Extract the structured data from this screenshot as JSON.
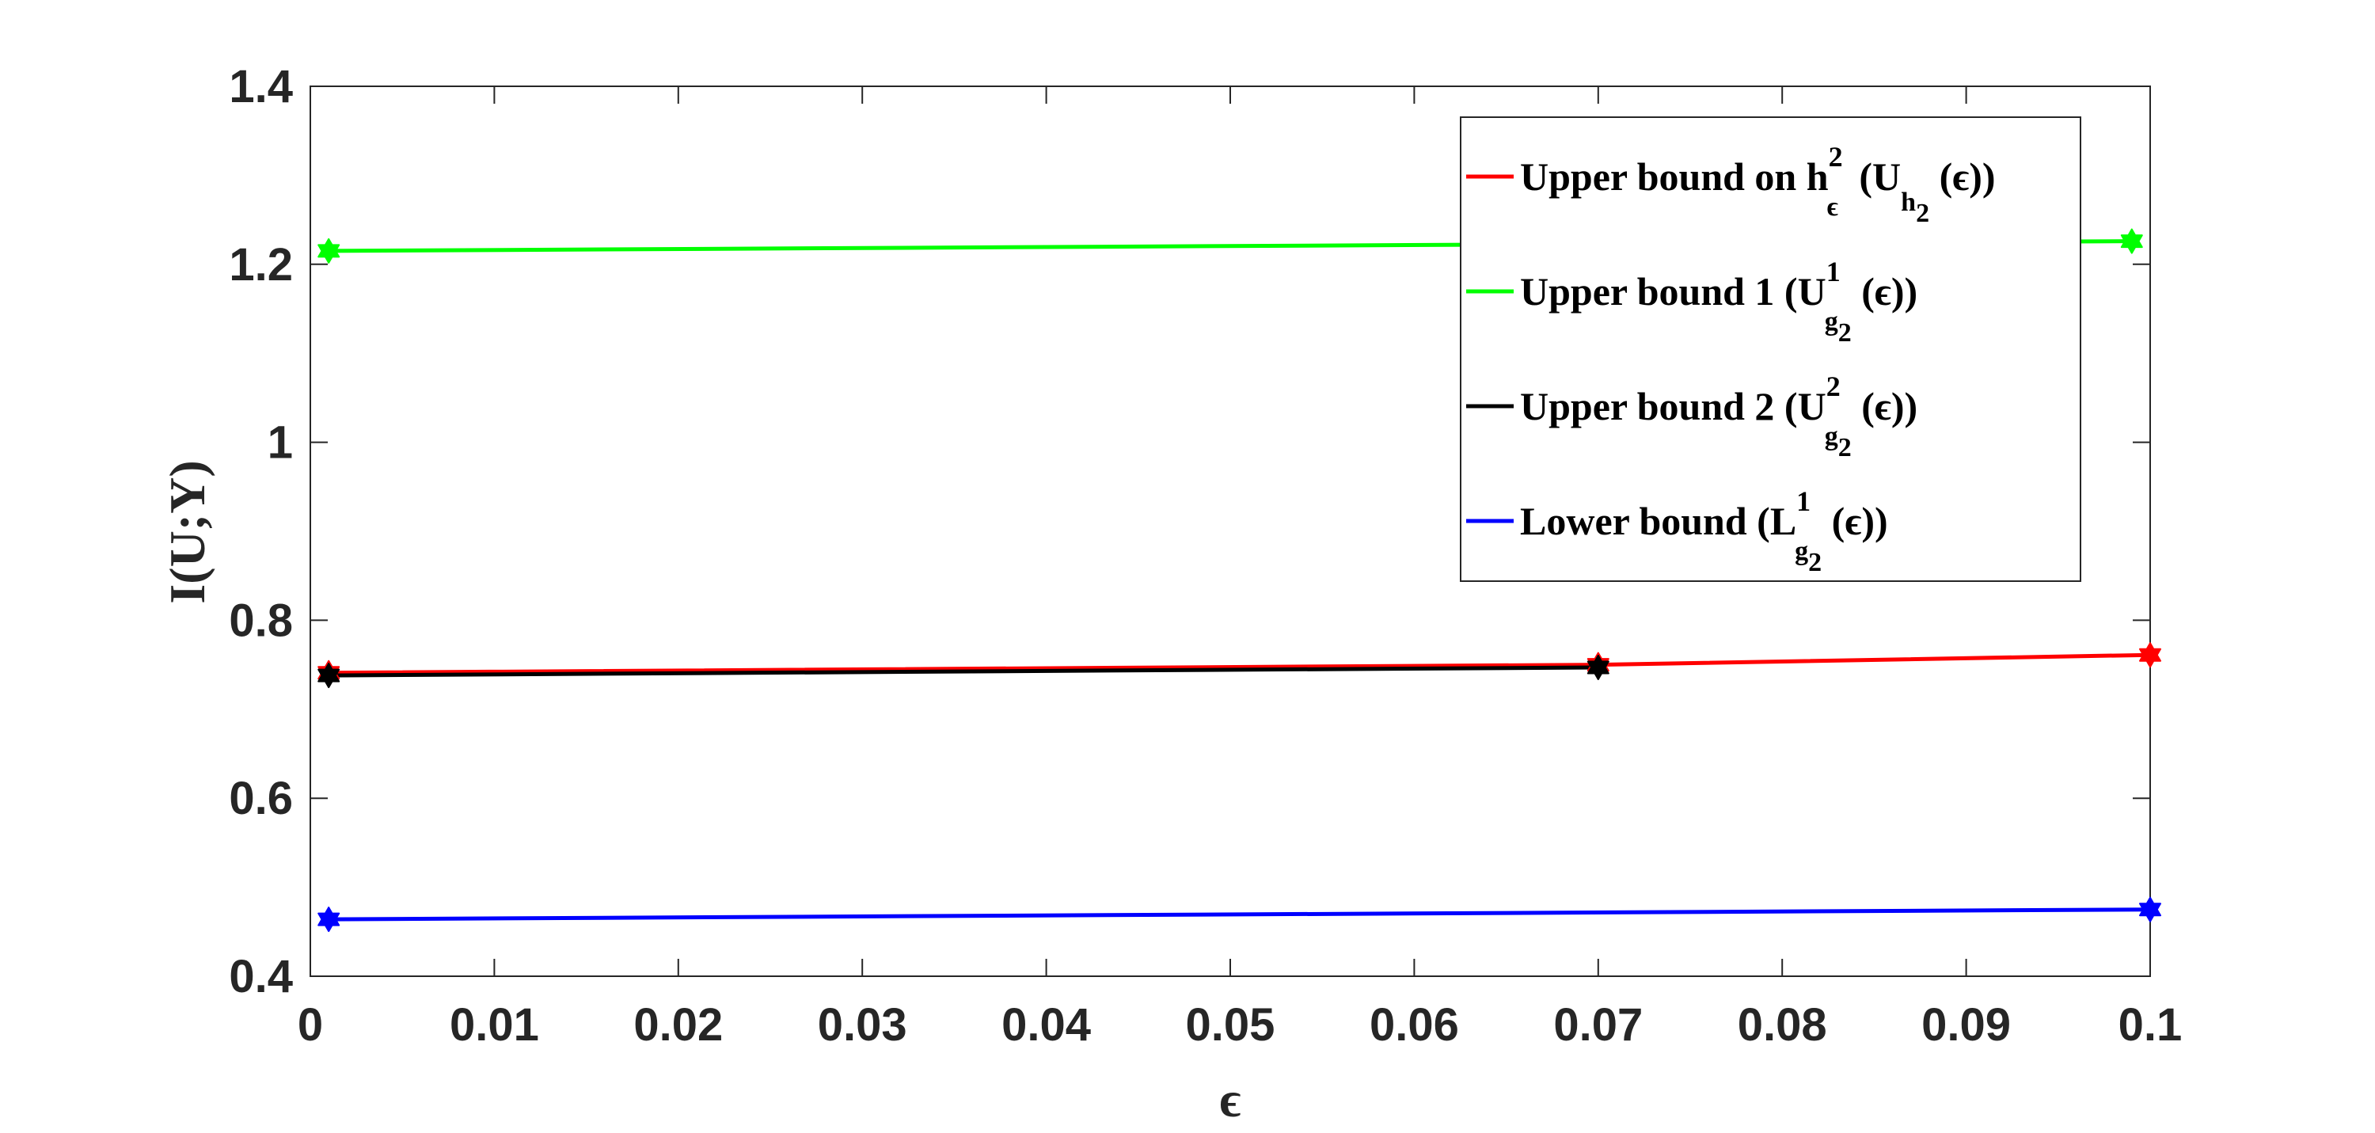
{
  "chart_data": {
    "type": "line",
    "xlabel": "ϵ",
    "ylabel": "I(U;Y)",
    "xlim": [
      0,
      0.1
    ],
    "ylim": [
      0.4,
      1.4
    ],
    "xticks": [
      "0",
      "0.01",
      "0.02",
      "0.03",
      "0.04",
      "0.05",
      "0.06",
      "0.07",
      "0.08",
      "0.09",
      "0.1"
    ],
    "yticks": [
      "0.4",
      "0.6",
      "0.8",
      "1",
      "1.2",
      "1.4"
    ],
    "grid": false,
    "legend_position": "top-right",
    "series": [
      {
        "name": "Upper bound on h²ϵ (Uh₂(ϵ))",
        "legend": {
          "pre": "Upper bound on h",
          "sup": "2",
          "sub": "ϵ",
          "mid": " (U",
          "sub2": "h",
          "sub3": "2",
          "post": " (ϵ))"
        },
        "color": "#ff0000",
        "x": [
          0.001,
          0.07,
          0.1
        ],
        "y": [
          0.741,
          0.75,
          0.761
        ]
      },
      {
        "name": "Upper bound 1 (U¹g₂(ϵ))",
        "legend": {
          "pre": "Upper bound 1 (U",
          "sup": "1",
          "sub": "g",
          "sub2": "2",
          "post": " (ϵ))"
        },
        "color": "#00ff00",
        "x": [
          0.001,
          0.099
        ],
        "y": [
          1.215,
          1.226
        ]
      },
      {
        "name": "Upper bound 2 (U²g₂(ϵ))",
        "legend": {
          "pre": "Upper bound 2 (U",
          "sup": "2",
          "sub": "g",
          "sub2": "2",
          "post": " (ϵ))"
        },
        "color": "#000000",
        "x": [
          0.001,
          0.07
        ],
        "y": [
          0.738,
          0.747
        ]
      },
      {
        "name": "Lower bound (L¹g₂(ϵ))",
        "legend": {
          "pre": "Lower bound (L",
          "sup": "1",
          "sub": "g",
          "sub2": "2",
          "post": " (ϵ))"
        },
        "color": "#0000ff",
        "x": [
          0.001,
          0.1
        ],
        "y": [
          0.464,
          0.475
        ]
      }
    ]
  }
}
